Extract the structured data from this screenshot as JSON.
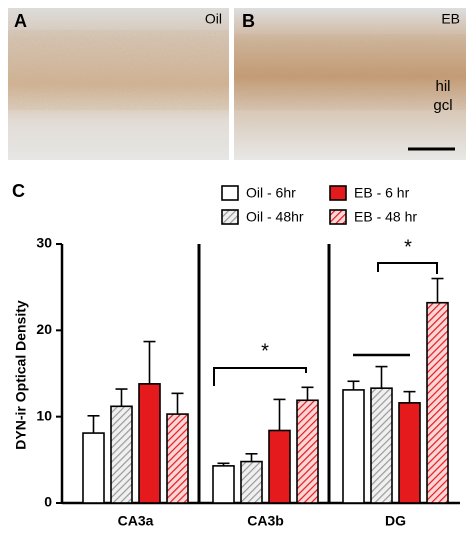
{
  "panels": [
    {
      "label": "A",
      "condition": "Oil"
    },
    {
      "label": "B",
      "condition": "EB",
      "layers": [
        "hil",
        "gcl"
      ]
    }
  ],
  "chart_data": {
    "type": "bar",
    "panel_label": "C",
    "y_label": "DYN-ir Optical Density",
    "categories": [
      "CA3a",
      "CA3b",
      "DG"
    ],
    "series": [
      {
        "name": "Oil - 6hr",
        "color": "#ffffff",
        "hatch": false,
        "values": [
          8.1,
          4.3,
          13.1
        ],
        "errors": [
          2.0,
          0.3,
          1.0
        ]
      },
      {
        "name": "Oil - 48hr",
        "color": "#d0d0d0",
        "hatch": true,
        "values": [
          11.2,
          4.8,
          13.3
        ],
        "errors": [
          2.0,
          0.9,
          2.5
        ]
      },
      {
        "name": "EB - 6 hr",
        "color": "#e41a1c",
        "hatch": false,
        "values": [
          13.8,
          8.4,
          11.6
        ],
        "errors": [
          4.9,
          3.6,
          1.3
        ]
      },
      {
        "name": "EB - 48 hr",
        "color": "#e41a1c",
        "hatch": true,
        "values": [
          10.3,
          11.9,
          23.2
        ],
        "errors": [
          2.4,
          1.5,
          2.8
        ]
      }
    ],
    "annotations": [
      "*",
      "*"
    ],
    "ylim": [
      0,
      30
    ],
    "yticks": [
      0,
      10,
      20,
      30
    ],
    "legend": "top-right"
  }
}
